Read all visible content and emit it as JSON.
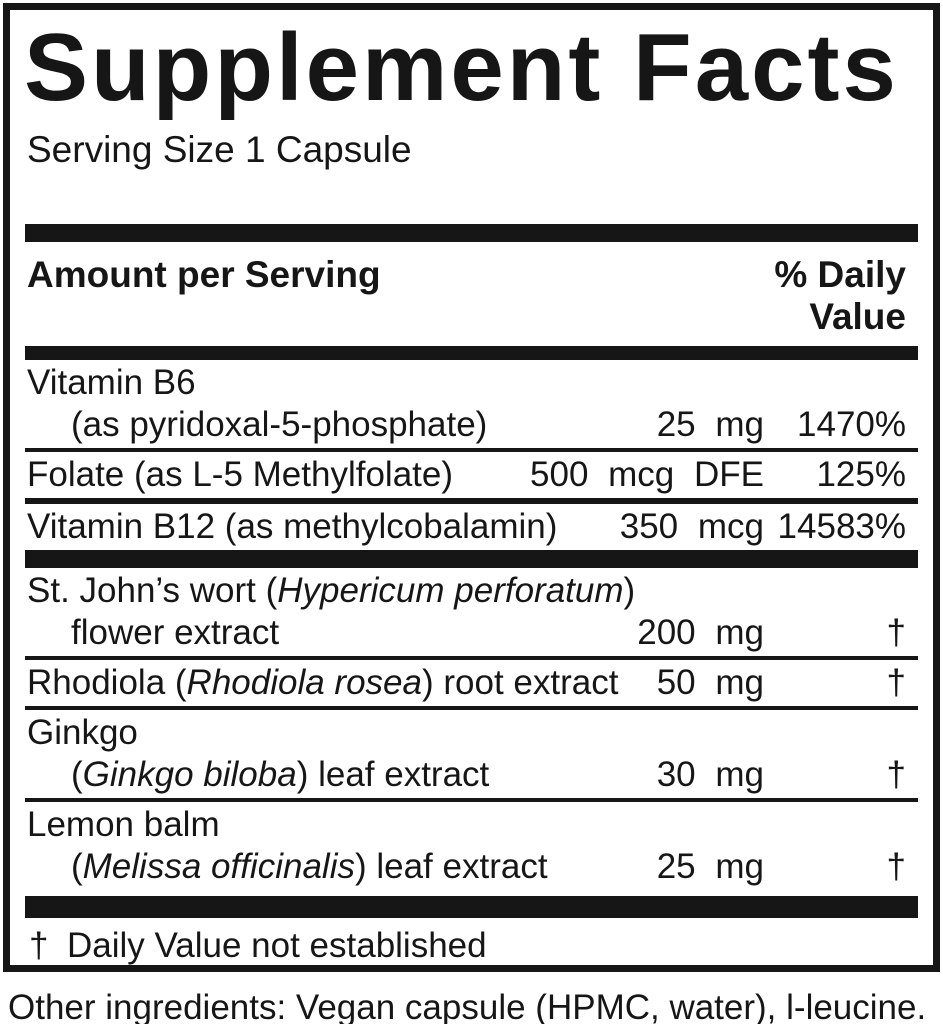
{
  "label": {
    "title": "Supplement Facts",
    "serving_size": "Serving Size 1 Capsule",
    "columns": {
      "amount_header": "Amount per Serving",
      "dv_header_line1": "% Daily",
      "dv_header_line2": "Value"
    },
    "rows": [
      {
        "line1": {
          "pre": "Vitamin B6"
        },
        "line2": {
          "pre": "(as pyridoxal-5-phosphate)"
        },
        "amount": "25 mg",
        "dv": "1470%"
      },
      {
        "line1": {
          "pre": "Folate (as L-5 Methylfolate)"
        },
        "amount": "500 mcg DFE",
        "dv": "125%"
      },
      {
        "line1": {
          "pre": "Vitamin B12 (as methylcobalamin)"
        },
        "amount": "350 mcg",
        "dv": "14583%"
      },
      {
        "line1": {
          "pre": "St. John’s wort (",
          "it": "Hypericum perforatum",
          "post": ")"
        },
        "line2": {
          "pre": "flower extract"
        },
        "amount": "200 mg",
        "dv": "†"
      },
      {
        "line1": {
          "pre": "Rhodiola (",
          "it": "Rhodiola rosea",
          "post": ") root extract"
        },
        "amount": "50 mg",
        "dv": "†"
      },
      {
        "line1": {
          "pre": "Ginkgo"
        },
        "line2": {
          "pre": "(",
          "it": "Ginkgo biloba",
          "post": ") leaf extract"
        },
        "amount": "30 mg",
        "dv": "†"
      },
      {
        "line1": {
          "pre": "Lemon balm"
        },
        "line2": {
          "pre": "(",
          "it": "Melissa officinalis",
          "post": ") leaf extract"
        },
        "amount": "25 mg",
        "dv": "†"
      }
    ],
    "footnote": {
      "symbol": "†",
      "text": "Daily Value not established"
    },
    "other_ingredients": "Other ingredients: Vegan capsule (HPMC, water), l-leucine."
  },
  "colors": {
    "ink": "#161616",
    "background": "#ffffff"
  }
}
